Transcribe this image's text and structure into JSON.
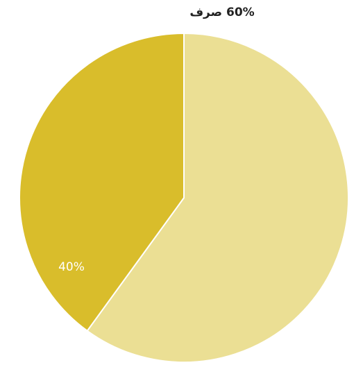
{
  "chart_data": {
    "type": "pie",
    "values": [
      60,
      40
    ],
    "value_labels": [
      "60% صرف",
      "40%"
    ],
    "colors": [
      "#ebdf94",
      "#d9bd2b"
    ],
    "label_colors": [
      "#222222",
      "#ffffff"
    ]
  }
}
